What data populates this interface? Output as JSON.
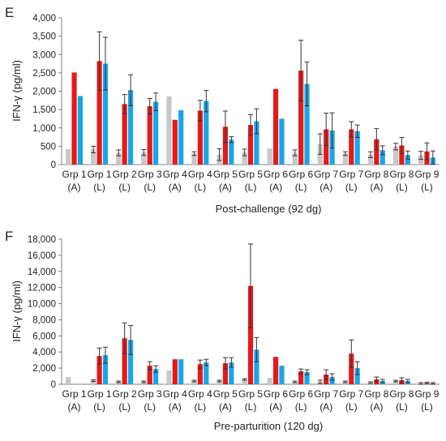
{
  "colors": {
    "gray": "#c8c8c8",
    "red": "#e41a1a",
    "blue": "#1aa6e6",
    "axis": "#808080",
    "grid_text": "#222222"
  },
  "chart_data": [
    {
      "panel_label": "E",
      "type": "bar",
      "title": "",
      "xlabel": "Post-challenge (92 dg)",
      "ylabel": "IFN-γ (pg/ml)",
      "ylim": [
        0,
        4000
      ],
      "yticks": [
        "0",
        "500",
        "1,000",
        "1,500",
        "2,000",
        "2,500",
        "3,000",
        "3,500",
        "4,000"
      ],
      "ytick_values": [
        0,
        500,
        1000,
        1500,
        2000,
        2500,
        3000,
        3500,
        4000
      ],
      "categories": [
        [
          "Grp 1",
          "(A)"
        ],
        [
          "Grp 1",
          "(L)"
        ],
        [
          "Grp 2",
          "(L)"
        ],
        [
          "Grp 3",
          "(L)"
        ],
        [
          "Grp 4",
          "(A)"
        ],
        [
          "Grp 4",
          "(L)"
        ],
        [
          "Grp 5",
          "(A)"
        ],
        [
          "Grp 5",
          "(L)"
        ],
        [
          "Grp 6",
          "(A)"
        ],
        [
          "Grp 6",
          "(L)"
        ],
        [
          "Grp 7",
          "(A)"
        ],
        [
          "Grp 7",
          "(L)"
        ],
        [
          "Grp 8",
          "(A)"
        ],
        [
          "Grp 8",
          "(L)"
        ],
        [
          "Grp 9",
          "(L)"
        ]
      ],
      "series": [
        {
          "color_key": "gray",
          "values": [
            420,
            410,
            320,
            330,
            1860,
            300,
            270,
            330,
            440,
            320,
            560,
            300,
            270,
            490,
            250
          ],
          "errors": [
            0,
            90,
            80,
            80,
            0,
            50,
            160,
            90,
            0,
            80,
            280,
            50,
            80,
            90,
            110
          ]
        },
        {
          "color_key": "red",
          "values": [
            2510,
            2820,
            1650,
            1590,
            1220,
            1470,
            1030,
            1080,
            2060,
            2560,
            960,
            960,
            690,
            520,
            360
          ],
          "errors": [
            0,
            800,
            260,
            210,
            0,
            280,
            430,
            280,
            0,
            830,
            440,
            210,
            290,
            220,
            230
          ]
        },
        {
          "color_key": "blue",
          "values": [
            1870,
            2750,
            2030,
            1710,
            1480,
            1730,
            680,
            1180,
            1250,
            2200,
            930,
            910,
            390,
            260,
            190
          ],
          "errors": [
            0,
            720,
            420,
            240,
            0,
            290,
            80,
            340,
            0,
            600,
            480,
            170,
            120,
            110,
            180
          ]
        }
      ]
    },
    {
      "panel_label": "F",
      "type": "bar",
      "title": "",
      "xlabel": "Pre-parturition (120 dg)",
      "ylabel": "IFN-γ (pg/ml)",
      "ylim": [
        0,
        18000
      ],
      "yticks": [
        "0",
        "2,000",
        "4,000",
        "6,000",
        "8,000",
        "10,000",
        "12,000",
        "14,000",
        "16,000",
        "18,000"
      ],
      "ytick_values": [
        0,
        2000,
        4000,
        6000,
        8000,
        10000,
        12000,
        14000,
        16000,
        18000
      ],
      "categories": [
        [
          "Grp 1",
          "(A)"
        ],
        [
          "Grp 1",
          "(L)"
        ],
        [
          "Grp 2",
          "(L)"
        ],
        [
          "Grp 3",
          "(L)"
        ],
        [
          "Grp 4",
          "(A)"
        ],
        [
          "Grp 4",
          "(L)"
        ],
        [
          "Grp 5",
          "(A)"
        ],
        [
          "Grp 5",
          "(L)"
        ],
        [
          "Grp 6",
          "(A)"
        ],
        [
          "Grp 6",
          "(L)"
        ],
        [
          "Grp 7",
          "(A)"
        ],
        [
          "Grp 7",
          "(L)"
        ],
        [
          "Grp 8",
          "(A)"
        ],
        [
          "Grp 8",
          "(L)"
        ],
        [
          "Grp 9",
          "(L)"
        ]
      ],
      "series": [
        {
          "color_key": "gray",
          "values": [
            900,
            450,
            300,
            300,
            1700,
            400,
            400,
            600,
            800,
            300,
            300,
            300,
            200,
            400,
            100
          ],
          "errors": [
            0,
            100,
            100,
            100,
            0,
            100,
            100,
            100,
            0,
            100,
            200,
            100,
            100,
            100,
            100
          ]
        },
        {
          "color_key": "red",
          "values": [
            0,
            3500,
            5700,
            2300,
            3100,
            2500,
            2600,
            12200,
            3400,
            1600,
            1200,
            3800,
            600,
            500,
            150
          ],
          "errors": [
            0,
            1000,
            1900,
            500,
            0,
            500,
            700,
            5200,
            0,
            300,
            600,
            1700,
            300,
            300,
            100
          ]
        },
        {
          "color_key": "blue",
          "values": [
            0,
            3600,
            5500,
            1900,
            3100,
            2700,
            2700,
            4300,
            2300,
            1500,
            900,
            2000,
            400,
            400,
            100
          ],
          "errors": [
            0,
            1000,
            1800,
            400,
            0,
            400,
            600,
            1500,
            0,
            300,
            400,
            800,
            200,
            200,
            100
          ]
        }
      ]
    }
  ]
}
